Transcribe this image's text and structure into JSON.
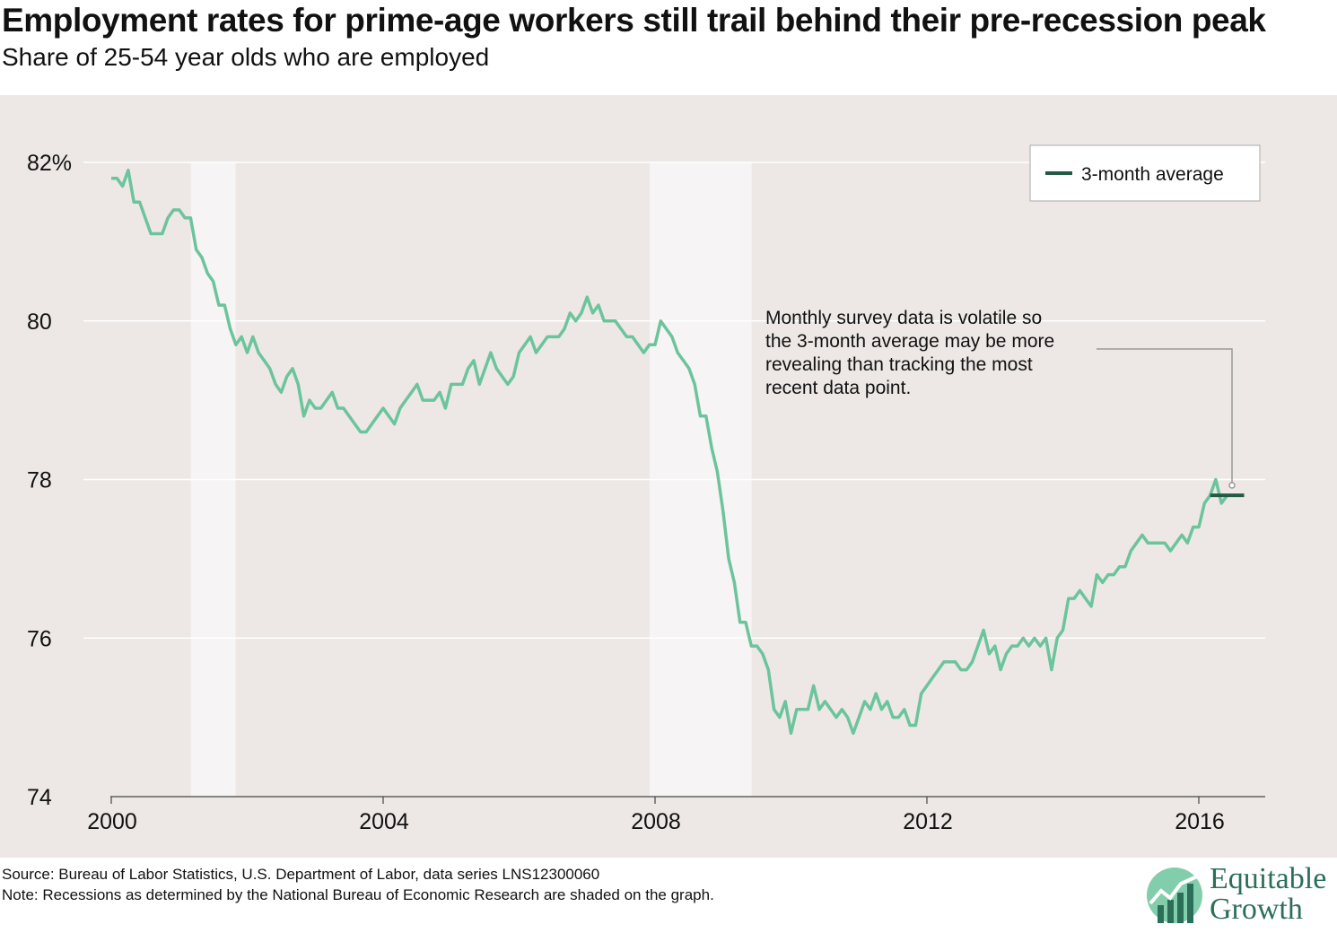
{
  "header": {
    "title": "Employment rates for prime-age workers still trail behind their pre-recession peak",
    "subtitle": "Share of 25-54 year olds who are employed"
  },
  "footer": {
    "source": "Source: Bureau of Labor Statistics, U.S. Department of Labor, data series LNS12300060",
    "note": "Note: Recessions as determined by the National Bureau of Economic Research are shaded on the graph."
  },
  "logo": {
    "line1": "Equitable",
    "line2": "Growth",
    "icon": "growth-chart-logo-icon",
    "color": "#2c6f58"
  },
  "colors": {
    "line": "#6cc49c",
    "average": "#235a46",
    "panel": "#ede8e6",
    "recession": "#f6f4f4",
    "grid": "#ffffff"
  },
  "chart_data": {
    "type": "line",
    "title": "Employment rates for prime-age workers still trail behind their pre-recession peak",
    "subtitle": "Share of 25-54 year olds who are employed",
    "xlabel": "",
    "ylabel": "",
    "xlim": [
      2000,
      2017
    ],
    "ylim": [
      74,
      82
    ],
    "x_ticks": [
      2000,
      2004,
      2008,
      2012,
      2016
    ],
    "x_tick_labels": [
      "2000",
      "2004",
      "2008",
      "2012",
      "2016"
    ],
    "y_ticks": [
      74,
      76,
      78,
      80,
      82
    ],
    "y_tick_labels": [
      "74",
      "76",
      "78",
      "80",
      "82%"
    ],
    "grid": "horizontal",
    "recessions": [
      {
        "start": 2001.17,
        "end": 2001.83
      },
      {
        "start": 2007.92,
        "end": 2009.42
      }
    ],
    "series": [
      {
        "start": "2000-01",
        "frequency": "monthly",
        "values": [
          81.8,
          81.8,
          81.7,
          81.9,
          81.5,
          81.5,
          81.3,
          81.1,
          81.1,
          81.1,
          81.3,
          81.4,
          81.4,
          81.3,
          81.3,
          80.9,
          80.8,
          80.6,
          80.5,
          80.2,
          80.2,
          79.9,
          79.7,
          79.8,
          79.6,
          79.8,
          79.6,
          79.5,
          79.4,
          79.2,
          79.1,
          79.3,
          79.4,
          79.2,
          78.8,
          79.0,
          78.9,
          78.9,
          79.0,
          79.1,
          78.9,
          78.9,
          78.8,
          78.7,
          78.6,
          78.6,
          78.7,
          78.8,
          78.9,
          78.8,
          78.7,
          78.9,
          79.0,
          79.1,
          79.2,
          79.0,
          79.0,
          79.0,
          79.1,
          78.9,
          79.2,
          79.2,
          79.2,
          79.4,
          79.5,
          79.2,
          79.4,
          79.6,
          79.4,
          79.3,
          79.2,
          79.3,
          79.6,
          79.7,
          79.8,
          79.6,
          79.7,
          79.8,
          79.8,
          79.8,
          79.9,
          80.1,
          80.0,
          80.1,
          80.3,
          80.1,
          80.2,
          80.0,
          80.0,
          80.0,
          79.9,
          79.8,
          79.8,
          79.7,
          79.6,
          79.7,
          79.7,
          80.0,
          79.9,
          79.8,
          79.6,
          79.5,
          79.4,
          79.2,
          78.8,
          78.8,
          78.4,
          78.1,
          77.6,
          77.0,
          76.7,
          76.2,
          76.2,
          75.9,
          75.9,
          75.8,
          75.6,
          75.1,
          75.0,
          75.2,
          74.8,
          75.1,
          75.1,
          75.1,
          75.4,
          75.1,
          75.2,
          75.1,
          75.0,
          75.1,
          75.0,
          74.8,
          75.0,
          75.2,
          75.1,
          75.3,
          75.1,
          75.2,
          75.0,
          75.0,
          75.1,
          74.9,
          74.9,
          75.3,
          75.4,
          75.5,
          75.6,
          75.7,
          75.7,
          75.7,
          75.6,
          75.6,
          75.7,
          75.9,
          76.1,
          75.8,
          75.9,
          75.6,
          75.8,
          75.9,
          75.9,
          76.0,
          75.9,
          76.0,
          75.9,
          76.0,
          75.6,
          76.0,
          76.1,
          76.5,
          76.5,
          76.6,
          76.5,
          76.4,
          76.8,
          76.7,
          76.8,
          76.8,
          76.9,
          76.9,
          77.1,
          77.2,
          77.3,
          77.2,
          77.2,
          77.2,
          77.2,
          77.1,
          77.2,
          77.3,
          77.2,
          77.4,
          77.4,
          77.7,
          77.8,
          78.0,
          77.7,
          77.8,
          77.8
        ]
      },
      {
        "name": "3-month average",
        "x": [
          "2016-03",
          "2016-09"
        ],
        "values": [
          77.8,
          77.8
        ]
      }
    ],
    "legend": {
      "entries": [
        "3-month average"
      ],
      "position": "top-right"
    },
    "annotation": {
      "text_lines": [
        "Monthly survey data is volatile so",
        "the 3-month average may be more",
        "revealing than tracking the most",
        "recent data point."
      ],
      "target": "3-month average"
    }
  }
}
